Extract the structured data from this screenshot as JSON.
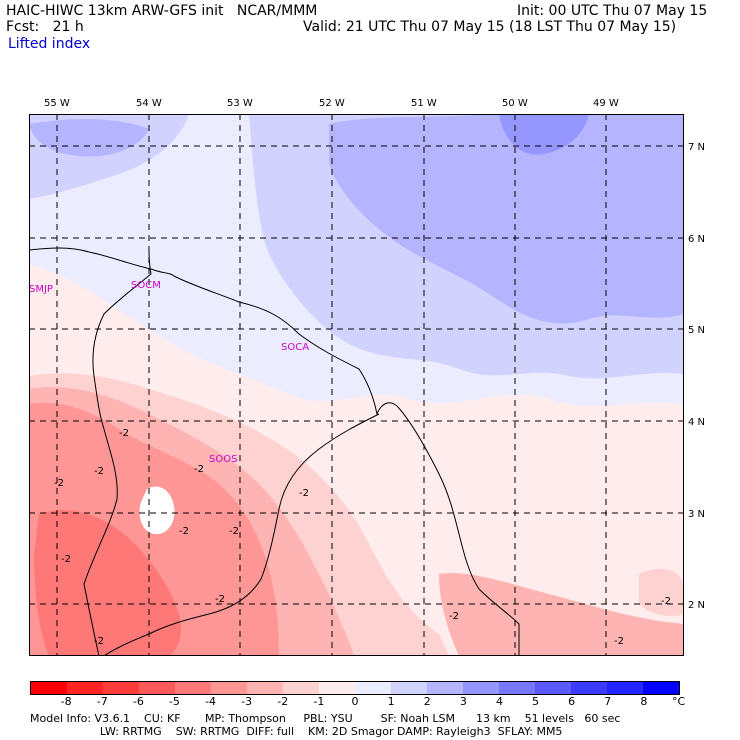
{
  "header": {
    "line1_left": "HAIC-HIWC 13km ARW-GFS init   NCAR/MMM",
    "line1_right": "Init: 00 UTC Thu 07 May 15",
    "line2_left": "Fcst:   21 h",
    "line2_right": "Valid: 21 UTC Thu 07 May 15 (18 LST Thu 07 May 15)",
    "field_name": "Lifted index"
  },
  "map": {
    "longitude_labels": [
      "55 W",
      "54 W",
      "53 W",
      "52 W",
      "51 W",
      "50 W",
      "49 W"
    ],
    "latitude_labels": [
      "7 N",
      "6 N",
      "5 N",
      "4 N",
      "3 N",
      "2 N"
    ],
    "stations": [
      {
        "id": "SMJP"
      },
      {
        "id": "SOCM"
      },
      {
        "id": "SOCA"
      },
      {
        "id": "SOOS"
      }
    ],
    "contour_labels": [
      "-2",
      "-2",
      "-2",
      "-2",
      "-2",
      "-2",
      "-2",
      "-2",
      "-2",
      "-2",
      "-2",
      "-2",
      "-2"
    ]
  },
  "colorbar": {
    "labels": [
      "-8",
      "-7",
      "-6",
      "-5",
      "-4",
      "-3",
      "-2",
      "-1",
      "0",
      "1",
      "2",
      "3",
      "4",
      "5",
      "6",
      "7",
      "8"
    ],
    "unit": "°C",
    "colors": [
      "#ff0000",
      "#ff2424",
      "#ff3c3c",
      "#ff5a5a",
      "#ff7878",
      "#ff9696",
      "#ffb4b4",
      "#ffd2d2",
      "#ffecec",
      "#ececff",
      "#d2d2ff",
      "#b4b4ff",
      "#9696ff",
      "#7878ff",
      "#5a5aff",
      "#3c3cff",
      "#2424ff",
      "#0000ff"
    ]
  },
  "footer": {
    "line1": "Model Info: V3.6.1    CU: KF       MP: Thompson     PBL: YSU        SF: Noah LSM      13 km    51 levels   60 sec",
    "line2": "                    LW: RRTMG    SW: RRTMG  DIFF: full    KM: 2D Smagor DAMP: Rayleigh3  SFLAY: MM5"
  }
}
